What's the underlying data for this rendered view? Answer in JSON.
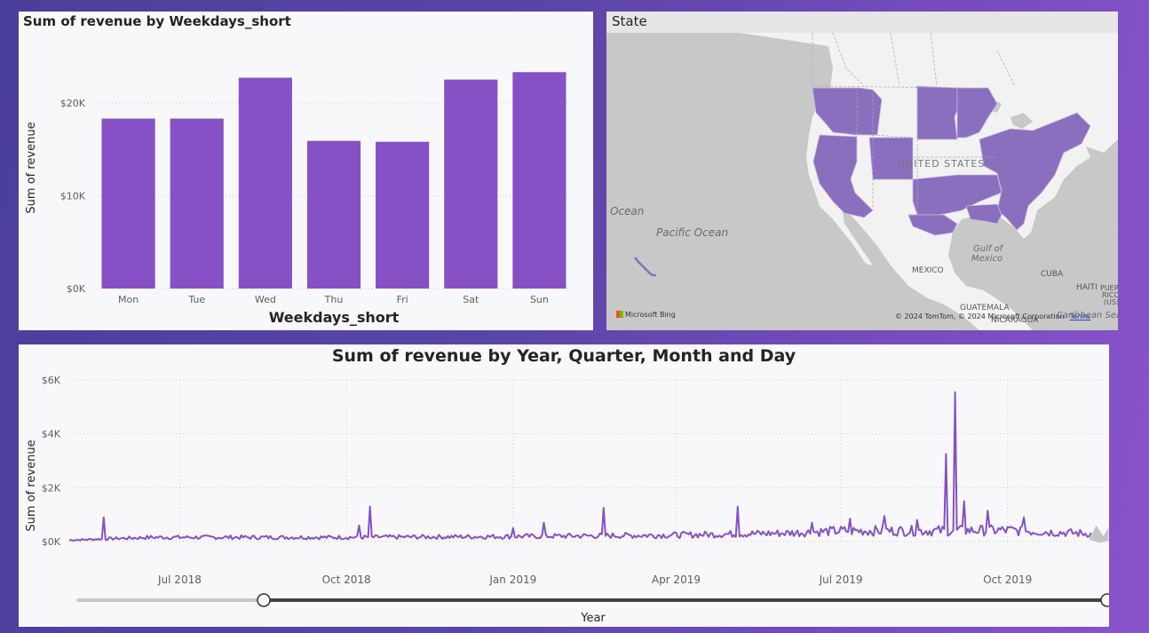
{
  "bar_panel": {
    "title": "Sum of revenue by Weekdays_short"
  },
  "map_panel": {
    "title": "State",
    "labels": {
      "us": "UNITED STATES",
      "ocean": "Ocean",
      "pacific": "Pacific Ocean",
      "gulf1": "Gulf of",
      "gulf2": "Mexico",
      "mexico": "MEXICO",
      "cuba": "CUBA",
      "haiti": "HAITI",
      "pr1": "PUERTO",
      "pr2": "RICO",
      "pr3": "(US)",
      "guatemala": "GUATEMALA",
      "nicaragua": "NICARAGUA",
      "caribbean": "Caribbean Sea"
    },
    "bing": "Microsoft Bing",
    "copyright": "© 2024 TomTom, © 2024 Microsoft Corporation",
    "terms": "Terms",
    "colors": {
      "highlight": "#8a6fbf",
      "land": "#f2f2f2",
      "water": "#c8c8c8"
    }
  },
  "line_panel": {
    "title": "Sum of revenue by Year, Quarter, Month and Day",
    "slider_label": "Year"
  },
  "colors": {
    "accent": "#8651c5"
  },
  "chart_data": [
    {
      "type": "bar",
      "title": "Sum of revenue by Weekdays_short",
      "categories": [
        "Mon",
        "Tue",
        "Wed",
        "Thu",
        "Fri",
        "Sat",
        "Sun"
      ],
      "values": [
        18300,
        18300,
        22700,
        15900,
        15800,
        22500,
        23300
      ],
      "xlabel": "Weekdays_short",
      "ylabel": "Sum of revenue",
      "ylim": [
        0,
        26000
      ],
      "yticks": [
        0,
        10000,
        20000
      ],
      "ytick_labels": [
        "$0K",
        "$10K",
        "$20K"
      ],
      "grid": true
    },
    {
      "type": "line",
      "title": "Sum of revenue by Year, Quarter, Month and Day",
      "xlabel": "",
      "ylabel": "Sum of revenue",
      "xlim": [
        "2018-05-01",
        "2019-11-26"
      ],
      "ylim": [
        0,
        6000
      ],
      "yticks": [
        0,
        2000,
        4000,
        6000
      ],
      "ytick_labels": [
        "$0K",
        "$2K",
        "$4K",
        "$6K"
      ],
      "xticks": [
        "2018-07-01",
        "2018-10-01",
        "2019-01-01",
        "2019-04-01",
        "2019-07-01",
        "2019-10-01"
      ],
      "xtick_labels": [
        "Jul 2018",
        "Oct 2018",
        "Jan 2019",
        "Apr 2019",
        "Jul 2019",
        "Oct 2019"
      ],
      "grid": true,
      "baseline": [
        [
          "2018-05-01",
          50
        ],
        [
          "2018-06-15",
          150
        ],
        [
          "2018-10-01",
          150
        ],
        [
          "2019-01-01",
          180
        ],
        [
          "2019-04-01",
          230
        ],
        [
          "2019-06-01",
          300
        ],
        [
          "2019-07-01",
          380
        ],
        [
          "2019-08-20",
          380
        ],
        [
          "2019-10-01",
          400
        ],
        [
          "2019-11-26",
          250
        ]
      ],
      "peaks": [
        [
          "2018-05-20",
          900
        ],
        [
          "2018-10-08",
          600
        ],
        [
          "2018-10-14",
          1300
        ],
        [
          "2019-01-01",
          500
        ],
        [
          "2019-01-18",
          700
        ],
        [
          "2019-02-20",
          1250
        ],
        [
          "2019-05-05",
          1300
        ],
        [
          "2019-06-15",
          700
        ],
        [
          "2019-07-06",
          850
        ],
        [
          "2019-07-25",
          950
        ],
        [
          "2019-08-12",
          800
        ],
        [
          "2019-08-28",
          3250
        ],
        [
          "2019-09-02",
          5550
        ],
        [
          "2019-09-07",
          1500
        ],
        [
          "2019-09-20",
          1150
        ],
        [
          "2019-10-10",
          900
        ]
      ]
    }
  ]
}
